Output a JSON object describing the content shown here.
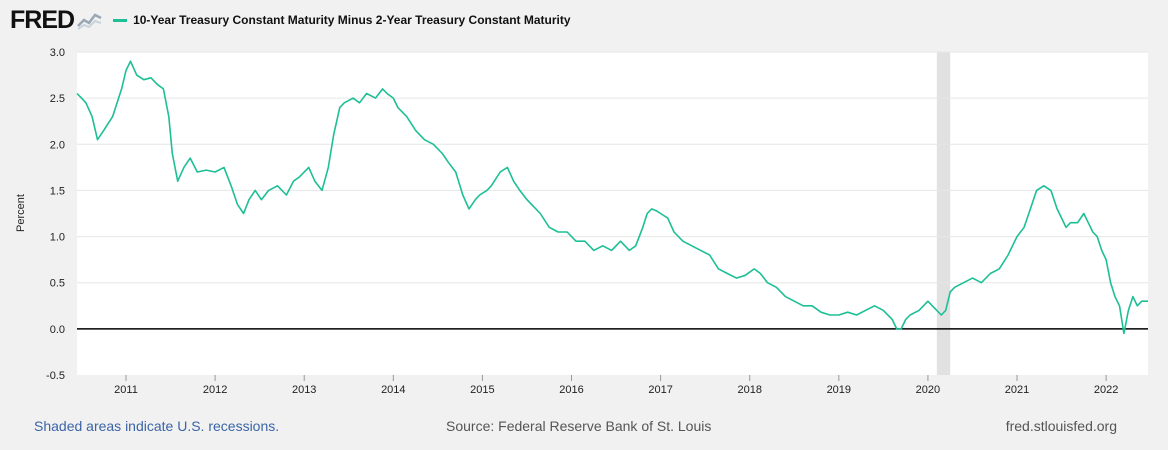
{
  "header": {
    "logo_text": "FRED",
    "logo_icon": "sparkline-chart-icon",
    "series_title": "10-Year Treasury Constant Maturity Minus 2-Year Treasury Constant Maturity",
    "series_color": "#1dbf95"
  },
  "footer": {
    "recession_note": "Shaded areas indicate U.S. recessions.",
    "source": "Source: Federal Reserve Bank of St. Louis",
    "url": "fred.stlouisfed.org"
  },
  "chart_data": {
    "type": "line",
    "ylabel": "Percent",
    "xlabel": "",
    "xlim": [
      2010.45,
      2022.47
    ],
    "ylim": [
      -0.5,
      3.0
    ],
    "yticks": [
      -0.5,
      0.0,
      0.5,
      1.0,
      1.5,
      2.0,
      2.5,
      3.0
    ],
    "ytick_labels": [
      "-0.5",
      "0.0",
      "0.5",
      "1.0",
      "1.5",
      "2.0",
      "2.5",
      "3.0"
    ],
    "xticks": [
      2011,
      2012,
      2013,
      2014,
      2015,
      2016,
      2017,
      2018,
      2019,
      2020,
      2021,
      2022
    ],
    "xtick_labels": [
      "2011",
      "2012",
      "2013",
      "2014",
      "2015",
      "2016",
      "2017",
      "2018",
      "2019",
      "2020",
      "2021",
      "2022"
    ],
    "grid": true,
    "zero_line": true,
    "recessions": [
      {
        "start": 2020.1,
        "end": 2020.25,
        "color": "#e1e1e1"
      }
    ],
    "series": [
      {
        "color": "#1dbf95",
        "x": [
          2010.45,
          2010.5,
          2010.55,
          2010.62,
          2010.68,
          2010.75,
          2010.85,
          2010.95,
          2011.0,
          2011.05,
          2011.12,
          2011.2,
          2011.28,
          2011.35,
          2011.42,
          2011.48,
          2011.52,
          2011.58,
          2011.65,
          2011.72,
          2011.8,
          2011.9,
          2012.0,
          2012.1,
          2012.18,
          2012.25,
          2012.32,
          2012.38,
          2012.45,
          2012.52,
          2012.6,
          2012.7,
          2012.8,
          2012.88,
          2012.95,
          2013.05,
          2013.12,
          2013.2,
          2013.27,
          2013.33,
          2013.4,
          2013.45,
          2013.55,
          2013.62,
          2013.7,
          2013.8,
          2013.88,
          2013.93,
          2014.0,
          2014.05,
          2014.15,
          2014.25,
          2014.35,
          2014.45,
          2014.55,
          2014.62,
          2014.7,
          2014.78,
          2014.85,
          2014.92,
          2014.97,
          2015.05,
          2015.1,
          2015.2,
          2015.28,
          2015.35,
          2015.42,
          2015.5,
          2015.55,
          2015.65,
          2015.75,
          2015.85,
          2015.95,
          2016.05,
          2016.15,
          2016.25,
          2016.35,
          2016.45,
          2016.55,
          2016.65,
          2016.72,
          2016.8,
          2016.85,
          2016.9,
          2016.95,
          2017.0,
          2017.08,
          2017.15,
          2017.25,
          2017.35,
          2017.45,
          2017.55,
          2017.65,
          2017.75,
          2017.85,
          2017.95,
          2018.05,
          2018.12,
          2018.2,
          2018.3,
          2018.4,
          2018.5,
          2018.6,
          2018.7,
          2018.8,
          2018.9,
          2019.0,
          2019.1,
          2019.2,
          2019.3,
          2019.4,
          2019.5,
          2019.6,
          2019.65,
          2019.7,
          2019.75,
          2019.8,
          2019.9,
          2020.0,
          2020.1,
          2020.15,
          2020.2,
          2020.25,
          2020.3,
          2020.4,
          2020.5,
          2020.6,
          2020.7,
          2020.8,
          2020.9,
          2021.0,
          2021.08,
          2021.15,
          2021.22,
          2021.3,
          2021.38,
          2021.45,
          2021.5,
          2021.55,
          2021.6,
          2021.68,
          2021.75,
          2021.8,
          2021.85,
          2021.9,
          2021.95,
          2022.0,
          2022.05,
          2022.1,
          2022.15,
          2022.2,
          2022.25,
          2022.3,
          2022.35,
          2022.4,
          2022.47
        ],
        "values": [
          2.55,
          2.5,
          2.45,
          2.3,
          2.05,
          2.15,
          2.3,
          2.6,
          2.8,
          2.9,
          2.75,
          2.7,
          2.72,
          2.65,
          2.6,
          2.3,
          1.9,
          1.6,
          1.75,
          1.85,
          1.7,
          1.72,
          1.7,
          1.75,
          1.55,
          1.35,
          1.25,
          1.4,
          1.5,
          1.4,
          1.5,
          1.55,
          1.45,
          1.6,
          1.65,
          1.75,
          1.6,
          1.5,
          1.75,
          2.1,
          2.4,
          2.45,
          2.5,
          2.45,
          2.55,
          2.5,
          2.6,
          2.55,
          2.5,
          2.4,
          2.3,
          2.15,
          2.05,
          2.0,
          1.9,
          1.8,
          1.7,
          1.45,
          1.3,
          1.4,
          1.45,
          1.5,
          1.55,
          1.7,
          1.75,
          1.6,
          1.5,
          1.4,
          1.35,
          1.25,
          1.1,
          1.05,
          1.05,
          0.95,
          0.95,
          0.85,
          0.9,
          0.85,
          0.95,
          0.85,
          0.9,
          1.1,
          1.25,
          1.3,
          1.28,
          1.25,
          1.2,
          1.05,
          0.95,
          0.9,
          0.85,
          0.8,
          0.65,
          0.6,
          0.55,
          0.58,
          0.65,
          0.6,
          0.5,
          0.45,
          0.35,
          0.3,
          0.25,
          0.25,
          0.18,
          0.15,
          0.15,
          0.18,
          0.15,
          0.2,
          0.25,
          0.2,
          0.1,
          0.0,
          0.0,
          0.1,
          0.15,
          0.2,
          0.3,
          0.2,
          0.15,
          0.2,
          0.4,
          0.45,
          0.5,
          0.55,
          0.5,
          0.6,
          0.65,
          0.8,
          1.0,
          1.1,
          1.3,
          1.5,
          1.55,
          1.5,
          1.3,
          1.2,
          1.1,
          1.15,
          1.15,
          1.25,
          1.15,
          1.05,
          1.0,
          0.85,
          0.75,
          0.5,
          0.35,
          0.25,
          -0.05,
          0.2,
          0.35,
          0.25,
          0.3,
          0.3
        ]
      }
    ]
  }
}
